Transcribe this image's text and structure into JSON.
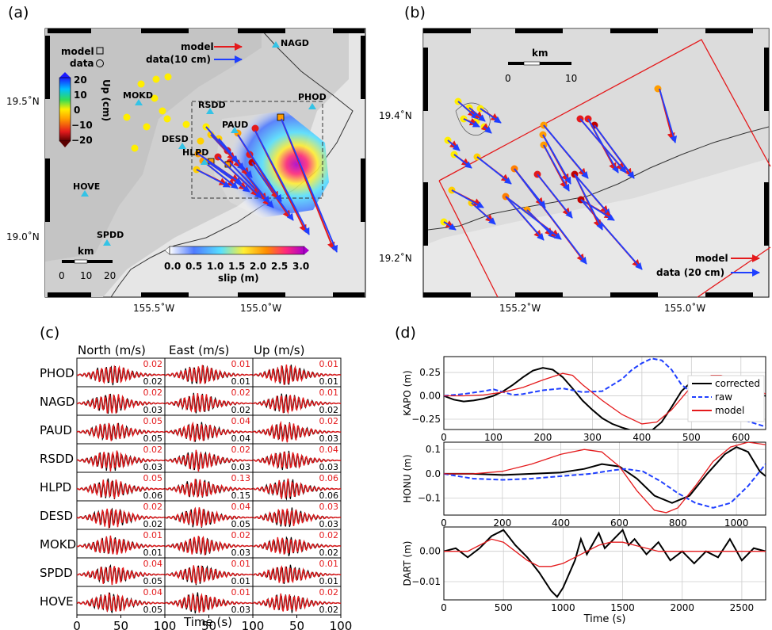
{
  "panels": {
    "a": {
      "label": "(a)",
      "lat_ticks": [
        "19.5˚N",
        "19.0˚N"
      ],
      "lon_ticks": [
        "155.5˚W",
        "155.0˚W"
      ],
      "legend": {
        "model": "model",
        "data": "data(10 cm)"
      },
      "marker_legend": {
        "model": "model",
        "data": "data"
      },
      "colorbar_up": {
        "title": "Up (cm)",
        "ticks": [
          "20",
          "10",
          "0",
          "−10",
          "−20"
        ]
      },
      "colorbar_slip": {
        "title": "slip (m)",
        "ticks": [
          "0.0",
          "0.5",
          "1.0",
          "1.5",
          "2.0",
          "2.5",
          "3.0"
        ]
      },
      "scalebar": {
        "unit": "km",
        "ticks": [
          "0",
          "10",
          "20"
        ]
      },
      "stations": [
        "NAGD",
        "MOKD",
        "RSDD",
        "PHOD",
        "PAUD",
        "DESD",
        "HLPD",
        "HOVE",
        "SPDD"
      ]
    },
    "b": {
      "label": "(b)",
      "lat_ticks": [
        "19.4˚N",
        "19.2˚N"
      ],
      "lon_ticks": [
        "155.2˚W",
        "155.0˚W"
      ],
      "scalebar": {
        "unit": "km",
        "ticks": [
          "0",
          "10"
        ]
      },
      "legend": {
        "model": "model",
        "data": "data (20 cm)"
      }
    },
    "c": {
      "label": "(c)",
      "columns": [
        "North (m/s)",
        "East (m/s)",
        "Up (m/s)"
      ],
      "xlabel": "Time (s)",
      "xticks": [
        "0",
        "50",
        "100"
      ],
      "rows": [
        {
          "station": "PHOD",
          "north": [
            "0.02",
            "0.02"
          ],
          "east": [
            "0.01",
            "0.01"
          ],
          "up": [
            "0.01",
            "0.01"
          ]
        },
        {
          "station": "NAGD",
          "north": [
            "0.02",
            "0.03"
          ],
          "east": [
            "0.02",
            "0.02"
          ],
          "up": [
            "0.01",
            "0.02"
          ]
        },
        {
          "station": "PAUD",
          "north": [
            "0.05",
            "0.05"
          ],
          "east": [
            "0.04",
            "0.04"
          ],
          "up": [
            "0.02",
            "0.03"
          ]
        },
        {
          "station": "RSDD",
          "north": [
            "0.02",
            "0.03"
          ],
          "east": [
            "0.02",
            "0.03"
          ],
          "up": [
            "0.04",
            "0.03"
          ]
        },
        {
          "station": "HLPD",
          "north": [
            "0.05",
            "0.06"
          ],
          "east": [
            "0.13",
            "0.15"
          ],
          "up": [
            "0.06",
            "0.06"
          ]
        },
        {
          "station": "DESD",
          "north": [
            "0.02",
            "0.02"
          ],
          "east": [
            "0.04",
            "0.05"
          ],
          "up": [
            "0.03",
            "0.03"
          ]
        },
        {
          "station": "MOKD",
          "north": [
            "0.01",
            "0.01"
          ],
          "east": [
            "0.02",
            "0.03"
          ],
          "up": [
            "0.02",
            "0.02"
          ]
        },
        {
          "station": "SPDD",
          "north": [
            "0.04",
            "0.05"
          ],
          "east": [
            "0.01",
            "0.01"
          ],
          "up": [
            "0.01",
            "0.01"
          ]
        },
        {
          "station": "HOVE",
          "north": [
            "0.04",
            "0.05"
          ],
          "east": [
            "0.01",
            "0.03"
          ],
          "up": [
            "0.02",
            "0.02"
          ]
        }
      ]
    },
    "d": {
      "label": "(d)"
    }
  },
  "chart_data": [
    {
      "type": "line",
      "ylabel": "KAPO (m)",
      "xlim": [
        0,
        650
      ],
      "ylim": [
        -0.36,
        0.42
      ],
      "xticks": [
        0,
        100,
        200,
        300,
        400,
        500,
        600
      ],
      "yticks": [
        0.25,
        0.0,
        -0.25
      ],
      "ytick_labels": [
        "0.25",
        "0.00",
        "−0.25"
      ],
      "legend": [
        "corrected",
        "raw",
        "model"
      ],
      "series": [
        {
          "name": "corrected",
          "color": "#000000",
          "style": "solid",
          "x": [
            0,
            20,
            40,
            60,
            80,
            100,
            120,
            140,
            160,
            180,
            200,
            220,
            240,
            260,
            280,
            300,
            320,
            340,
            360,
            380,
            400,
            420,
            440,
            460,
            480,
            500,
            520,
            540,
            560,
            580,
            600,
            620,
            650
          ],
          "y": [
            0.0,
            -0.04,
            -0.06,
            -0.05,
            -0.03,
            0.0,
            0.05,
            0.12,
            0.2,
            0.27,
            0.3,
            0.28,
            0.2,
            0.08,
            -0.05,
            -0.15,
            -0.24,
            -0.3,
            -0.34,
            -0.37,
            -0.38,
            -0.37,
            -0.28,
            -0.12,
            0.05,
            0.15,
            0.2,
            0.2,
            0.16,
            0.1,
            0.05,
            0.02,
            0.0
          ]
        },
        {
          "name": "raw",
          "color": "#1f3fff",
          "style": "dashed",
          "x": [
            0,
            40,
            80,
            100,
            120,
            140,
            160,
            200,
            240,
            280,
            320,
            360,
            380,
            400,
            420,
            440,
            460,
            480,
            520,
            560,
            600,
            650
          ],
          "y": [
            0.0,
            0.02,
            0.05,
            0.07,
            0.04,
            0.01,
            0.02,
            0.06,
            0.08,
            0.04,
            0.05,
            0.18,
            0.28,
            0.35,
            0.4,
            0.38,
            0.28,
            0.12,
            -0.05,
            -0.15,
            -0.25,
            -0.33
          ]
        },
        {
          "name": "model",
          "color": "#e41a1c",
          "style": "solid",
          "x": [
            0,
            40,
            80,
            120,
            160,
            200,
            240,
            260,
            280,
            320,
            360,
            400,
            430,
            460,
            500,
            540,
            560,
            600,
            640,
            650
          ],
          "y": [
            0.0,
            0.0,
            0.01,
            0.04,
            0.09,
            0.17,
            0.24,
            0.22,
            0.12,
            -0.05,
            -0.2,
            -0.3,
            -0.28,
            -0.15,
            0.1,
            0.22,
            0.22,
            0.15,
            0.05,
            0.02
          ]
        }
      ]
    },
    {
      "type": "line",
      "ylabel": "HONU (m)",
      "xlim": [
        0,
        1100
      ],
      "ylim": [
        -0.17,
        0.13
      ],
      "xticks": [
        0,
        200,
        400,
        600,
        800,
        1000
      ],
      "yticks": [
        0.1,
        0.0,
        -0.1
      ],
      "ytick_labels": [
        "0.1",
        "0.0",
        "−0.1"
      ],
      "series": [
        {
          "name": "corrected",
          "color": "#000000",
          "style": "solid",
          "x": [
            0,
            100,
            200,
            300,
            400,
            480,
            540,
            600,
            660,
            720,
            780,
            840,
            900,
            960,
            1000,
            1040,
            1080,
            1100
          ],
          "y": [
            0.0,
            0.0,
            -0.005,
            0.0,
            0.005,
            0.02,
            0.04,
            0.03,
            -0.02,
            -0.09,
            -0.12,
            -0.09,
            0.0,
            0.08,
            0.11,
            0.09,
            0.01,
            -0.01
          ]
        },
        {
          "name": "raw",
          "color": "#1f3fff",
          "style": "dashed",
          "x": [
            0,
            100,
            200,
            300,
            400,
            500,
            580,
            620,
            680,
            740,
            800,
            860,
            920,
            980,
            1040,
            1100
          ],
          "y": [
            0.0,
            -0.02,
            -0.025,
            -0.02,
            -0.01,
            0.0,
            0.015,
            0.02,
            0.01,
            -0.03,
            -0.08,
            -0.12,
            -0.14,
            -0.12,
            -0.05,
            0.04
          ]
        },
        {
          "name": "model",
          "color": "#e41a1c",
          "style": "solid",
          "x": [
            0,
            100,
            200,
            300,
            400,
            480,
            540,
            600,
            660,
            720,
            760,
            800,
            860,
            920,
            980,
            1040,
            1100
          ],
          "y": [
            0.0,
            0.0,
            0.01,
            0.04,
            0.08,
            0.1,
            0.09,
            0.03,
            -0.07,
            -0.15,
            -0.16,
            -0.14,
            -0.05,
            0.05,
            0.11,
            0.13,
            0.12
          ]
        }
      ]
    },
    {
      "type": "line",
      "ylabel": "DART (m)",
      "xlabel": "Time (s)",
      "xlim": [
        0,
        2700
      ],
      "ylim": [
        -0.016,
        0.008
      ],
      "xticks": [
        0,
        500,
        1000,
        1500,
        2000,
        2500
      ],
      "yticks": [
        0.0,
        -0.01
      ],
      "ytick_labels": [
        "0.00",
        "−0.01"
      ],
      "series": [
        {
          "name": "corrected",
          "color": "#000000",
          "style": "solid",
          "x": [
            0,
            100,
            200,
            300,
            400,
            500,
            600,
            700,
            800,
            900,
            950,
            1000,
            1100,
            1150,
            1200,
            1300,
            1350,
            1400,
            1500,
            1550,
            1600,
            1700,
            1800,
            1900,
            2000,
            2100,
            2200,
            2300,
            2400,
            2500,
            2600,
            2700
          ],
          "y": [
            0.0,
            0.001,
            -0.002,
            0.001,
            0.005,
            0.007,
            0.002,
            -0.002,
            -0.007,
            -0.013,
            -0.015,
            -0.012,
            -0.003,
            0.004,
            -0.001,
            0.006,
            0.001,
            0.003,
            0.007,
            0.002,
            0.004,
            -0.001,
            0.003,
            -0.003,
            0.0,
            -0.004,
            0.0,
            -0.002,
            0.004,
            -0.003,
            0.001,
            0.0
          ]
        },
        {
          "name": "model",
          "color": "#e41a1c",
          "style": "solid",
          "x": [
            0,
            200,
            300,
            400,
            500,
            600,
            700,
            800,
            900,
            1000,
            1100,
            1200,
            1300,
            1400,
            1500,
            1600,
            1800,
            2000,
            2200,
            2400,
            2600,
            2700
          ],
          "y": [
            0.0,
            0.0,
            0.002,
            0.004,
            0.003,
            0.0,
            -0.003,
            -0.005,
            -0.005,
            -0.004,
            -0.002,
            0.0,
            0.002,
            0.003,
            0.003,
            0.002,
            0.0,
            0.0,
            0.0,
            0.0,
            0.0,
            0.0
          ]
        }
      ]
    }
  ],
  "colors": {
    "model": "#e41a1c",
    "data": "#1f3fff",
    "corrected": "#000000",
    "station": "#33c3e6",
    "fault_box": "#e41a1c"
  }
}
